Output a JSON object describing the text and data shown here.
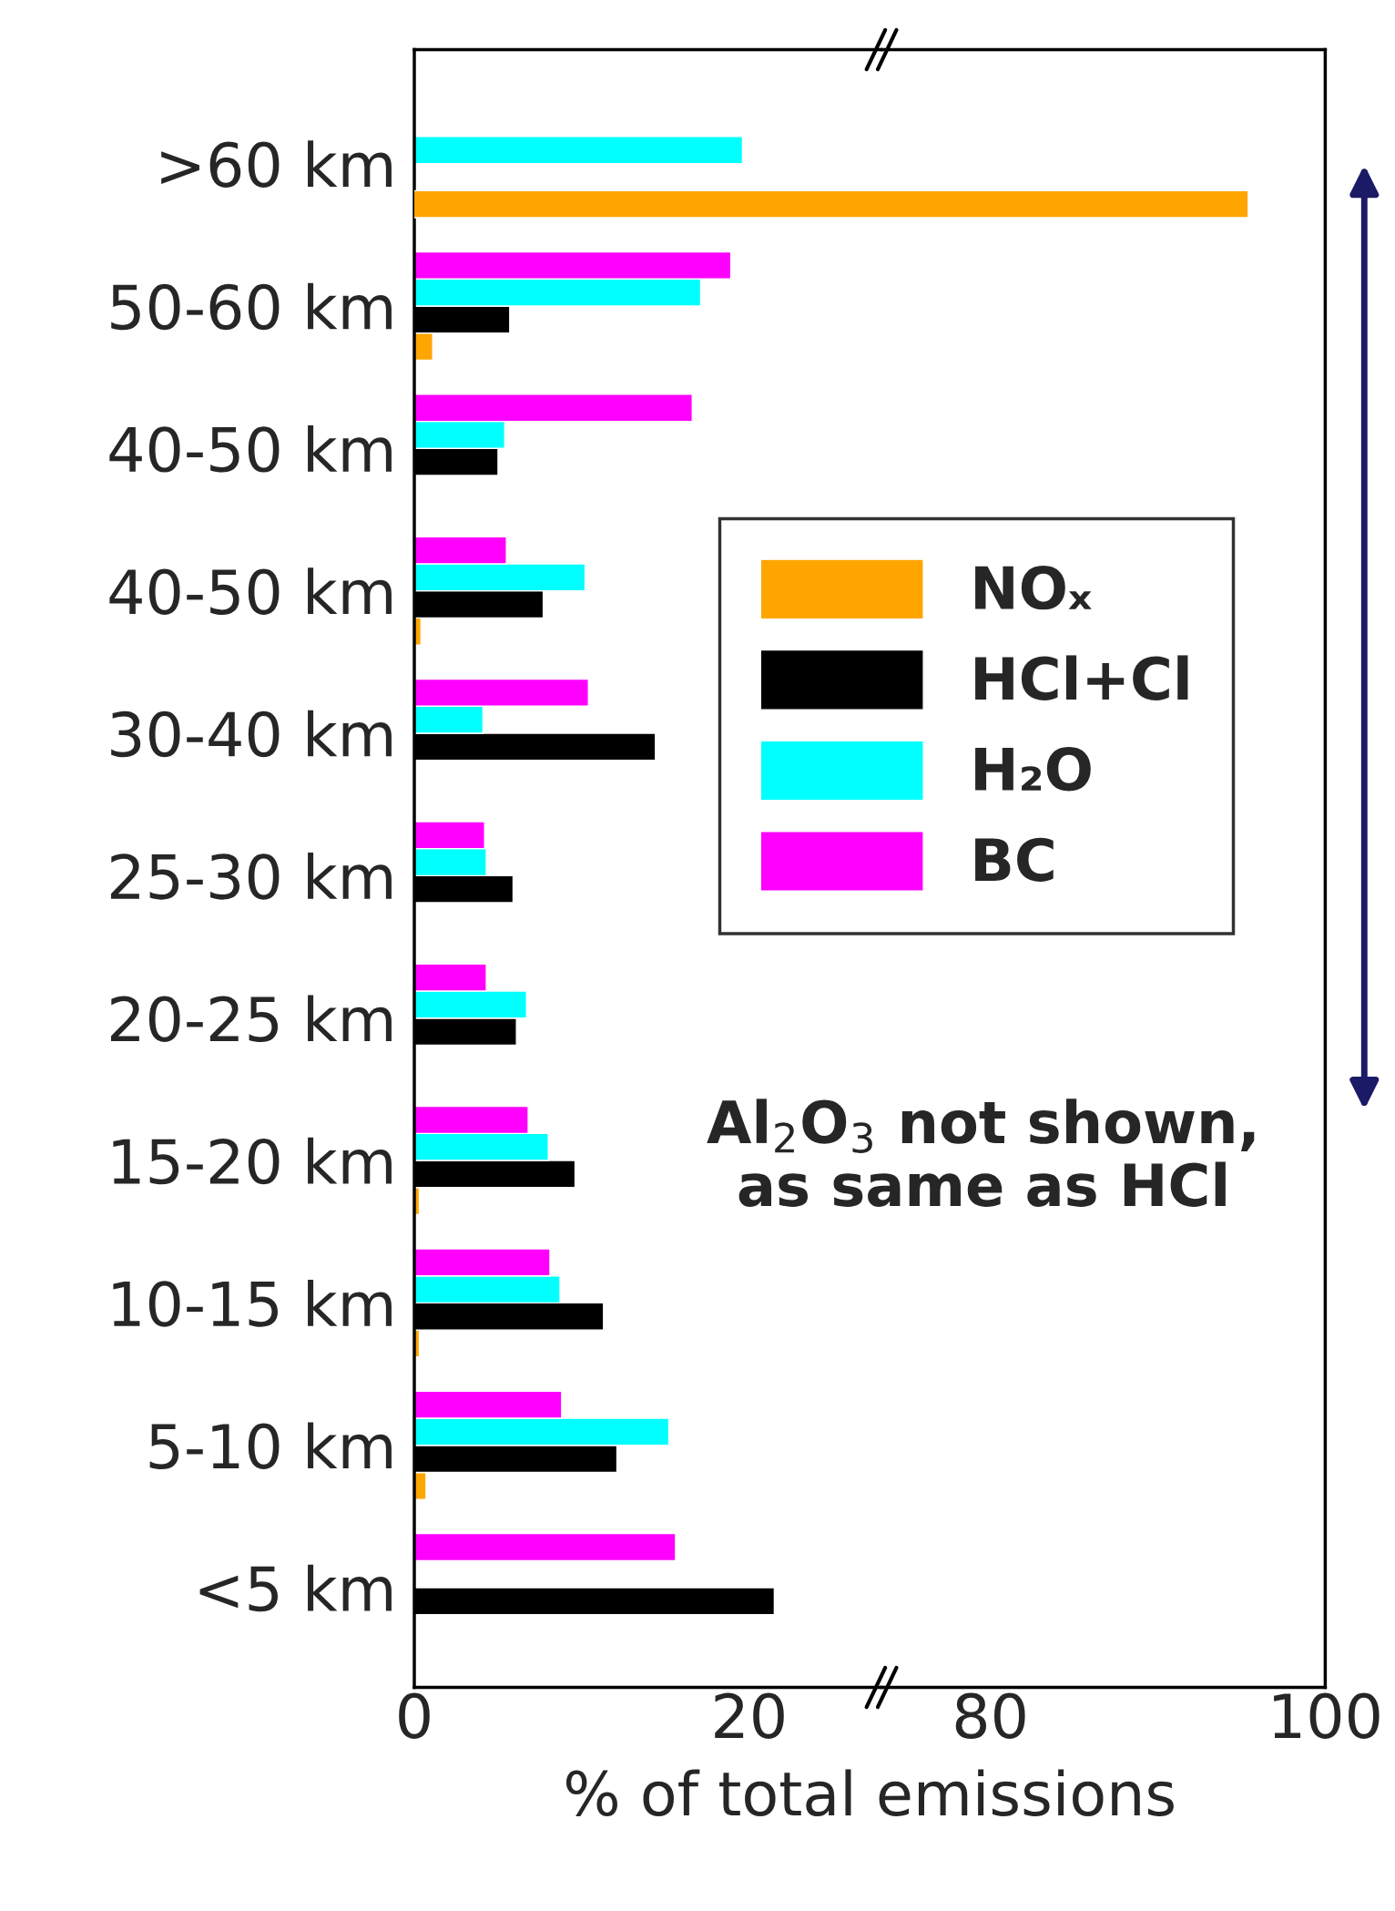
{
  "chart_data": [
    {
      "type": "bar",
      "orientation": "horizontal",
      "categories": [
        ">60 km",
        "50-60 km",
        "40-50 km",
        "40-50 km",
        "30-40 km",
        "25-30 km",
        "20-25 km",
        "15-20 km",
        "10-15 km",
        "5-10 km",
        "<5 km"
      ],
      "series": [
        {
          "name": "NOₓ",
          "color": "#ffa500",
          "values": [
            null,
            1.1,
            null,
            0.4,
            null,
            null,
            null,
            0.3,
            0.3,
            0.7,
            null
          ]
        },
        {
          "name": "HCl+Cl",
          "color": "#000000",
          "values": [
            null,
            5.7,
            5.0,
            7.7,
            14.4,
            5.9,
            6.1,
            9.6,
            11.3,
            12.1,
            21.5
          ]
        },
        {
          "name": "H₂O",
          "color": "#00ffff",
          "values": [
            19.6,
            17.1,
            5.4,
            10.2,
            4.1,
            4.3,
            6.7,
            8.0,
            8.7,
            15.2,
            null
          ]
        },
        {
          "name": "BC",
          "color": "#ff00ff",
          "values": [
            null,
            18.9,
            16.6,
            5.5,
            10.4,
            4.2,
            4.3,
            6.8,
            8.1,
            8.8,
            15.6
          ]
        }
      ],
      "xlabel": "% of total emissions",
      "xlim": [
        0,
        27.9
      ],
      "xticks": [
        0,
        20
      ],
      "annotations": [
        "Al$_{2}$O$_{3}$ not shown, as same as HCl"
      ],
      "legend": "right",
      "grid": false
    },
    {
      "type": "bar",
      "orientation": "horizontal",
      "categories": [
        null,
        null,
        null,
        null,
        null,
        null,
        null,
        null,
        null,
        null,
        null
      ],
      "series": [
        {
          "color": "#ffa500",
          "values": [
            95.4,
            null,
            null,
            null,
            null,
            null,
            null,
            null,
            null,
            null,
            null
          ]
        }
      ],
      "xlim": [
        73.5,
        100
      ],
      "xticks": [
        80,
        100
      ],
      "tick_labels": "x",
      "grid": false
    }
  ]
}
